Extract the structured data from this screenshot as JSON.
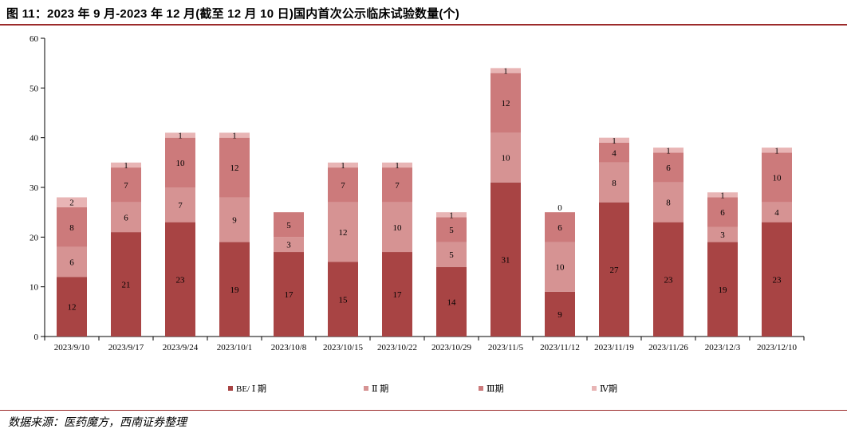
{
  "title": "图 11：2023 年 9 月-2023 年 12 月(截至 12 月 10 日)国内首次公示临床试验数量(个)",
  "source": "数据来源：医药魔方，西南证券整理",
  "colors": {
    "series": [
      "#a84444",
      "#d69393",
      "#cc7a7b",
      "#e8b5b5"
    ],
    "accent_rule": "#9c2a2a"
  },
  "chart_data": {
    "type": "bar",
    "stacked": true,
    "title": "",
    "xlabel": "",
    "ylabel": "",
    "ylim": [
      0,
      60
    ],
    "yticks": [
      0,
      10,
      20,
      30,
      40,
      50,
      60
    ],
    "grid": false,
    "legend_position": "bottom",
    "categories": [
      "2023/9/10",
      "2023/9/17",
      "2023/9/24",
      "2023/10/1",
      "2023/10/8",
      "2023/10/15",
      "2023/10/22",
      "2023/10/29",
      "2023/11/5",
      "2023/11/12",
      "2023/11/19",
      "2023/11/26",
      "2023/12/3",
      "2023/12/10"
    ],
    "series": [
      {
        "name": "BE/ Ⅰ 期",
        "values": [
          12,
          21,
          23,
          19,
          17,
          15,
          17,
          14,
          31,
          9,
          27,
          23,
          19,
          23
        ]
      },
      {
        "name": "Ⅱ 期",
        "values": [
          6,
          6,
          7,
          9,
          3,
          12,
          10,
          5,
          10,
          10,
          8,
          8,
          3,
          4
        ]
      },
      {
        "name": "Ⅲ期",
        "values": [
          8,
          7,
          10,
          12,
          5,
          7,
          7,
          5,
          12,
          6,
          4,
          6,
          6,
          10
        ]
      },
      {
        "name": "Ⅳ期",
        "values": [
          2,
          1,
          1,
          1,
          null,
          1,
          1,
          1,
          1,
          0,
          1,
          1,
          1,
          1
        ]
      }
    ]
  }
}
